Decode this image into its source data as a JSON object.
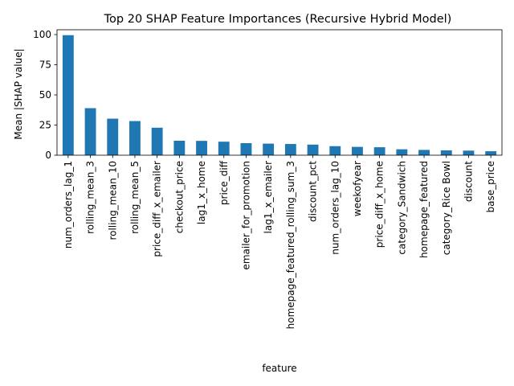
{
  "chart_data": {
    "type": "bar",
    "title": "Top 20 SHAP Feature Importances (Recursive Hybrid Model)",
    "xlabel": "feature",
    "ylabel": "Mean |SHAP value|",
    "ylim": [
      0,
      104
    ],
    "yticks": [
      0,
      25,
      50,
      75,
      100
    ],
    "grid": false,
    "bar_color": "#1f77b4",
    "categories": [
      "num_orders_lag_1",
      "rolling_mean_3",
      "rolling_mean_10",
      "rolling_mean_5",
      "price_diff_x_emailer",
      "checkout_price",
      "lag1_x_home",
      "price_diff",
      "emailer_for_promotion",
      "lag1_x_emailer",
      "homepage_featured_rolling_sum_3",
      "discount_pct",
      "num_orders_lag_10",
      "weekofyear",
      "price_diff_x_home",
      "category_Sandwich",
      "homepage_featured",
      "category_Rice Bowl",
      "discount",
      "base_price"
    ],
    "values": [
      99.5,
      39,
      30.3,
      28.3,
      22.8,
      12.0,
      11.9,
      11.2,
      10.0,
      9.6,
      9.3,
      8.8,
      7.5,
      6.9,
      6.6,
      4.9,
      4.4,
      4.0,
      3.8,
      3.3
    ]
  }
}
